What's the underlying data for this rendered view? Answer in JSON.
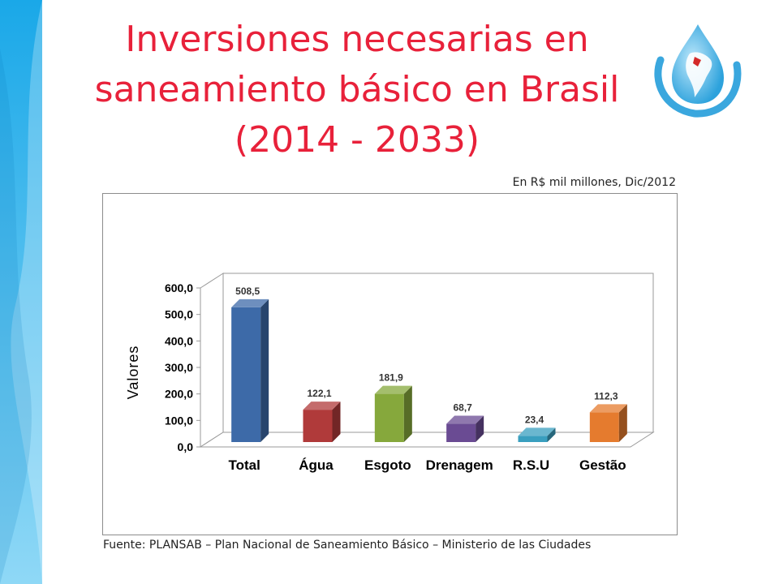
{
  "slide": {
    "title_lines": [
      "Inversiones necesarias en",
      "saneamiento básico en Brasil",
      "(2014 - 2033)"
    ],
    "unit_note": "En R$ mil millones, Dic/2012",
    "source": "Fuente: PLANSAB – Plan Nacional de Saneamiento Básico – Ministerio de las Ciudades"
  },
  "colors": {
    "title": "#e8213a",
    "side_band_top": "#1aa8e8",
    "side_band_bottom": "#8fd8f6"
  },
  "chart_data": {
    "type": "bar",
    "title": "",
    "xlabel": "",
    "ylabel": "Valores",
    "ylim": [
      0,
      600
    ],
    "yticks": [
      0,
      100,
      200,
      300,
      400,
      500,
      600
    ],
    "ytick_labels": [
      "0,0",
      "100,0",
      "200,0",
      "300,0",
      "400,0",
      "500,0",
      "600,0"
    ],
    "categories": [
      "Total",
      "Água",
      "Esgoto",
      "Drenagem",
      "R.S.U",
      "Gestão"
    ],
    "values": [
      508.5,
      122.1,
      181.9,
      68.7,
      23.4,
      112.3
    ],
    "value_labels": [
      "508,5",
      "122,1",
      "181,9",
      "68,7",
      "23,4",
      "112,3"
    ],
    "bar_colors": [
      "#3d6aa8",
      "#b03a3a",
      "#86a83c",
      "#6a4b93",
      "#3a9fbf",
      "#e57b2e"
    ],
    "grid": false,
    "legend": "none",
    "style": "3d-column"
  }
}
